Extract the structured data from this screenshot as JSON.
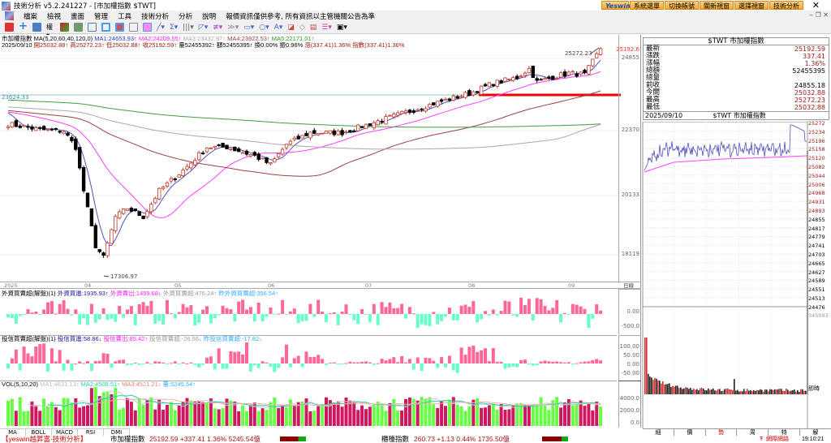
{
  "window": {
    "title": "技術分析 v5.2.241227 - [市加權指數 $TWT]"
  },
  "top_buttons": [
    "Yeswin",
    "系統選單",
    "切換帳號",
    "關新視窗",
    "選擇視窗",
    "技術分析"
  ],
  "menu": [
    "檔案",
    "檢視",
    "畫面",
    "管理",
    "工具",
    "技術分析",
    "分析",
    "說明",
    "報價資訊僅供參考, 所有資訊以主管機關公告為準"
  ],
  "main": {
    "line1": {
      "name": "市加權指數",
      "ma": "MA(5,20,60,40,120,0)",
      "ma1": "MA1:24653.93↑",
      "ma2": "MA2:24209.55↑",
      "ma3": "MA3:23437.97↑",
      "ma4": "MA4:23922.53↑",
      "ma5": "MA5:22171.01↑"
    },
    "line2": {
      "date": "2025/09/10",
      "open": "開25032.88↑",
      "high": "高25272.23↑",
      "low": "低25032.88↑",
      "close": "收25192.59↑",
      "vol": "量52455392↑",
      "amt": "額52455395↑",
      "chg1": "換0.00%",
      "amp": "振0.96%",
      "rise": "漲(337.41)1.36%",
      "idx": "指數(337.41)1.36%"
    },
    "hline_label": "23624.33",
    "high_label": "25272.23",
    "low_label": "17306.97",
    "last_price": "25192.6",
    "y_ticks": [
      "24855",
      "22370",
      "20133",
      "18119"
    ],
    "x_ticks": [
      "2025",
      "04",
      "05",
      "06",
      "07",
      "08",
      "09"
    ],
    "axis_unit": "日線"
  },
  "foreign": {
    "title": "外資買賣超(解盤)(1)",
    "buy": "外資買進:1935.93↑",
    "sell": "外資賣出:1459.68↓",
    "net": "外資買賣超:476.24↑",
    "prev": "昨外資買賣超:356.54↑",
    "ticks": [
      "0.00",
      "-500.0"
    ]
  },
  "inst": {
    "title": "投信買賣超(解盤)(1)",
    "buy": "投信買進:58.86↓",
    "sell": "投信賣出:85.42↑",
    "net": "投信買賣超:-26.56↓",
    "prev": "昨投信買賣超:-17.82↓",
    "ticks": [
      "100.00",
      "50.00",
      "0.00",
      "-50.00"
    ]
  },
  "vol": {
    "title": "VOL(5,10,20)",
    "ma1": "MA1:4631.13↑",
    "ma2": "MA2:4508.51↑",
    "ma3": "MA3:4521.21↓",
    "q": "量:5245.54↑",
    "ticks": [
      "4000.0",
      "2000.0",
      "0.0"
    ]
  },
  "bottom_tabs": [
    "MA",
    "BOLL",
    "MACD",
    "RSI",
    "DMI"
  ],
  "quote": {
    "title": "$TWT 市加權指數",
    "rows": [
      {
        "k": "最新",
        "v": "25192.59"
      },
      {
        "k": "漲跌",
        "v": "337.41"
      },
      {
        "k": "漲幅",
        "v": "1.36%"
      },
      {
        "k": "總額",
        "v": "52455395"
      },
      {
        "k": "總量",
        "v": ""
      },
      {
        "k": "前收",
        "v": "24855.18"
      },
      {
        "k": "今開",
        "v": "25032.88"
      },
      {
        "k": "最高",
        "v": "25272.23"
      },
      {
        "k": "最低",
        "v": "25032.88"
      }
    ]
  },
  "intraday": {
    "date": "2025/09/10",
    "title": "$TWT 市加權指數",
    "y_ticks": [
      "25272",
      "25234",
      "25196",
      "25158",
      "25120",
      "25082",
      "25044",
      "25006",
      "24968",
      "24931",
      "24893",
      "24855",
      "24817",
      "24779",
      "24741",
      "24703",
      "24665",
      "24627",
      "24589",
      "24551",
      "24513",
      "24476"
    ],
    "vol_max": "345093",
    "vol_unit": "即時"
  },
  "right_tabs": [
    "細",
    "價",
    "勢",
    "周",
    "特",
    "解"
  ],
  "status": {
    "brand": "【yeswin越昇富-技術分析】",
    "idx1_name": "市加權指數",
    "idx1": "25192.59 +337.41 1.36% 5245.54億",
    "idx2_name": "櫃檯指數",
    "idx2": "260.73 +1.13 0.44% 1735.50億",
    "alert": "網際網路",
    "time": "19:10:21"
  },
  "colors": {
    "up": "#c0392b",
    "down": "#000000",
    "ma5": "#5050c0",
    "ma20": "#ff40ff",
    "ma60": "#a04040",
    "ma120": "#aaaaaa",
    "ma240": "#40a040",
    "buy": "#ff6699",
    "sell": "#66ffcc",
    "volup": "#d01860",
    "voldn": "#66ff44"
  },
  "chart_data": {
    "type": "candlestick",
    "keypoints": [
      [
        0,
        22600
      ],
      [
        8,
        22400
      ],
      [
        14,
        22350
      ],
      [
        17,
        21800
      ],
      [
        19,
        20300
      ],
      [
        22,
        18400
      ],
      [
        24,
        18000
      ],
      [
        27,
        19400
      ],
      [
        30,
        19700
      ],
      [
        34,
        19400
      ],
      [
        38,
        20300
      ],
      [
        44,
        21000
      ],
      [
        50,
        21800
      ],
      [
        55,
        21800
      ],
      [
        62,
        21500
      ],
      [
        66,
        21200
      ],
      [
        70,
        21900
      ],
      [
        76,
        22300
      ],
      [
        84,
        22300
      ],
      [
        92,
        22650
      ],
      [
        100,
        23000
      ],
      [
        107,
        23300
      ],
      [
        116,
        23650
      ],
      [
        122,
        24000
      ],
      [
        128,
        24200
      ],
      [
        131,
        24500
      ],
      [
        133,
        24050
      ],
      [
        138,
        24250
      ],
      [
        141,
        24350
      ],
      [
        145,
        24300
      ],
      [
        149,
        25192
      ]
    ]
  }
}
